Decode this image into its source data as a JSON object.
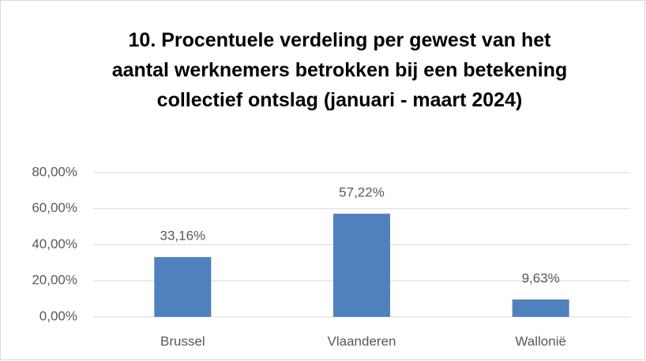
{
  "chart_data": {
    "type": "bar",
    "title": "10. Procentuele verdeling per gewest van het aantal werknemers betrokken bij een betekening collectief ontslag (januari - maart 2024)",
    "categories": [
      "Brussel",
      "Vlaanderen",
      "Wallonië"
    ],
    "values": [
      33.16,
      57.22,
      9.63
    ],
    "value_labels": [
      "33,16%",
      "57,22%",
      "9,63%"
    ],
    "color": "#4f81bd",
    "ylim": [
      0,
      80
    ],
    "yticks": [
      {
        "value": 0,
        "label": "0,00%"
      },
      {
        "value": 20,
        "label": "20,00%"
      },
      {
        "value": 40,
        "label": "40,00%"
      },
      {
        "value": 60,
        "label": "60,00%"
      },
      {
        "value": 80,
        "label": "80,00%"
      }
    ],
    "grid": true
  }
}
